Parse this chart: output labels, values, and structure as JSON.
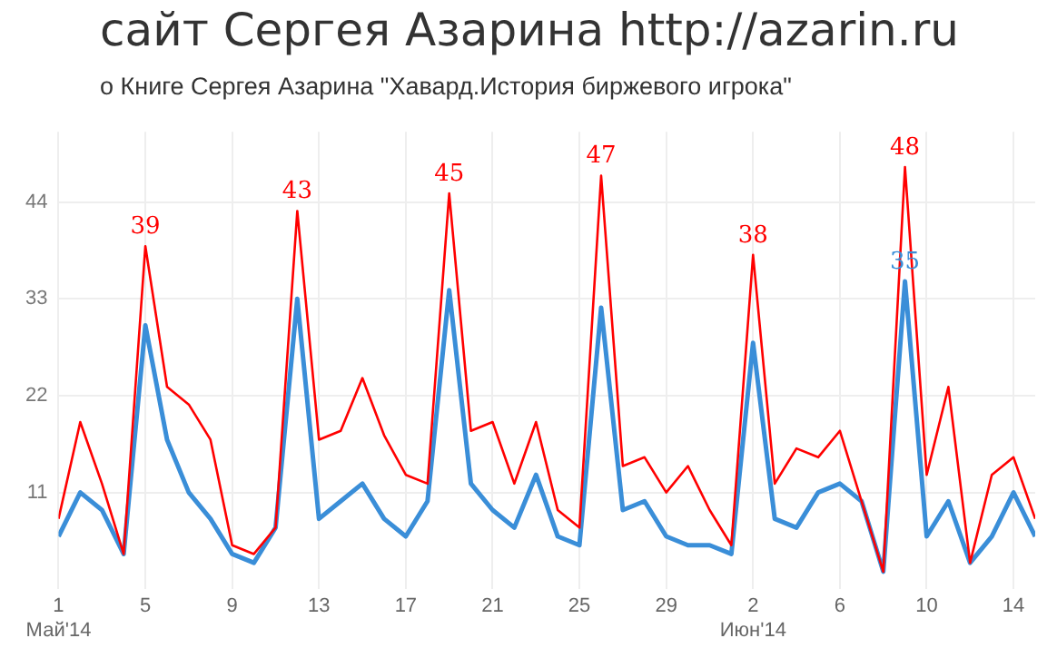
{
  "chart_data": {
    "type": "line",
    "title": "сайт Сергея Азарина http://azarin.ru",
    "subtitle": "о Книге Сергея Азарина \"Хавард.История биржевого игрока\"",
    "x": [
      "2014-05-01",
      "2014-05-02",
      "2014-05-03",
      "2014-05-04",
      "2014-05-05",
      "2014-05-06",
      "2014-05-07",
      "2014-05-08",
      "2014-05-09",
      "2014-05-10",
      "2014-05-11",
      "2014-05-12",
      "2014-05-13",
      "2014-05-14",
      "2014-05-15",
      "2014-05-16",
      "2014-05-17",
      "2014-05-18",
      "2014-05-19",
      "2014-05-20",
      "2014-05-21",
      "2014-05-22",
      "2014-05-23",
      "2014-05-24",
      "2014-05-25",
      "2014-05-26",
      "2014-05-27",
      "2014-05-28",
      "2014-05-29",
      "2014-05-30",
      "2014-05-31",
      "2014-06-01",
      "2014-06-02",
      "2014-06-03",
      "2014-06-04",
      "2014-06-05",
      "2014-06-06",
      "2014-06-07",
      "2014-06-08",
      "2014-06-09",
      "2014-06-10",
      "2014-06-11",
      "2014-06-12",
      "2014-06-13",
      "2014-06-14",
      "2014-06-15"
    ],
    "series": [
      {
        "color": "#ff0000",
        "values": [
          8,
          19,
          12,
          4,
          39,
          23,
          21,
          17,
          5,
          4,
          7,
          43,
          17,
          18,
          24,
          17.5,
          13,
          12,
          45,
          18,
          19,
          12,
          19,
          9,
          7,
          47,
          14,
          15,
          11,
          14,
          9,
          5,
          38,
          12,
          16,
          15,
          18,
          10,
          2,
          48,
          13,
          23,
          3,
          13,
          15,
          8
        ],
        "value_labels": [
          null,
          null,
          null,
          null,
          "39",
          null,
          null,
          null,
          null,
          null,
          null,
          "43",
          null,
          null,
          null,
          null,
          null,
          null,
          "45",
          null,
          null,
          null,
          null,
          null,
          null,
          "47",
          null,
          null,
          null,
          null,
          null,
          null,
          "38",
          null,
          null,
          null,
          null,
          null,
          null,
          "48",
          null,
          null,
          null,
          null,
          null,
          null
        ]
      },
      {
        "color": "#3a8ed8",
        "values": [
          6,
          11,
          9,
          4,
          30,
          17,
          11,
          8,
          4,
          3,
          7,
          33,
          8,
          10,
          12,
          8,
          6,
          10,
          34,
          12,
          9,
          7,
          13,
          6,
          5,
          32,
          9,
          10,
          6,
          5,
          5,
          4,
          28,
          8,
          7,
          11,
          12,
          10,
          2,
          35,
          6,
          10,
          3,
          6,
          11,
          6
        ],
        "value_labels": [
          null,
          null,
          null,
          null,
          null,
          null,
          null,
          null,
          null,
          null,
          null,
          null,
          null,
          null,
          null,
          null,
          null,
          null,
          null,
          null,
          null,
          null,
          null,
          null,
          null,
          null,
          null,
          null,
          null,
          null,
          null,
          null,
          null,
          null,
          null,
          null,
          null,
          null,
          null,
          "35",
          null,
          null,
          null,
          null,
          null,
          null
        ]
      }
    ],
    "xlim": [
      "2014-05-01",
      "2014-06-15"
    ],
    "xticks": [
      {
        "value": "2014-05-01",
        "label": "1\nМай'14"
      },
      {
        "value": "2014-05-05",
        "label": "5"
      },
      {
        "value": "2014-05-09",
        "label": "9"
      },
      {
        "value": "2014-05-13",
        "label": "13"
      },
      {
        "value": "2014-05-17",
        "label": "17"
      },
      {
        "value": "2014-05-21",
        "label": "21"
      },
      {
        "value": "2014-05-25",
        "label": "25"
      },
      {
        "value": "2014-05-29",
        "label": "29"
      },
      {
        "value": "2014-06-02",
        "label": "2\nИюн'14"
      },
      {
        "value": "2014-06-06",
        "label": "6"
      },
      {
        "value": "2014-06-10",
        "label": "10"
      },
      {
        "value": "2014-06-14",
        "label": "14"
      }
    ],
    "ylim": [
      0,
      52
    ],
    "yticks": [
      11,
      22,
      33,
      44
    ],
    "grid": true,
    "legend": false,
    "marker": "none",
    "line_style": "solid"
  }
}
